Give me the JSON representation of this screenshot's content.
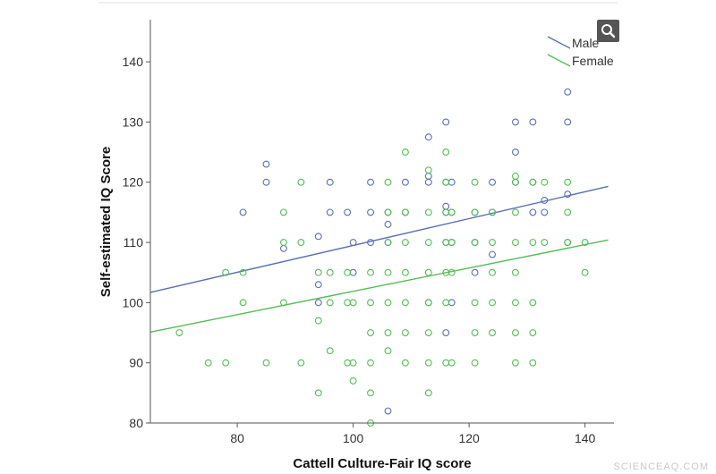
{
  "chart_data": {
    "type": "scatter",
    "xlabel": "Cattell Culture-Fair IQ score",
    "ylabel": "Self-estimated IQ Score",
    "xlim": [
      65,
      145
    ],
    "ylim": [
      80,
      147
    ],
    "xticks": [
      80,
      100,
      120,
      140
    ],
    "yticks": [
      80,
      90,
      100,
      110,
      120,
      130,
      140
    ],
    "grid": false,
    "legend_position": "top-right",
    "series": [
      {
        "name": "Male",
        "color": "#5b6fb3",
        "fit_line": {
          "x": [
            65,
            144
          ],
          "y": [
            101.7,
            119.3
          ]
        },
        "points": [
          [
            81,
            115
          ],
          [
            85,
            123
          ],
          [
            85,
            120
          ],
          [
            88,
            109
          ],
          [
            94,
            111
          ],
          [
            94,
            103
          ],
          [
            94,
            100
          ],
          [
            96,
            120
          ],
          [
            96,
            115
          ],
          [
            99,
            115
          ],
          [
            100,
            110
          ],
          [
            100,
            105
          ],
          [
            103,
            120
          ],
          [
            103,
            115
          ],
          [
            103,
            110
          ],
          [
            106,
            115
          ],
          [
            106,
            113
          ],
          [
            106,
            110
          ],
          [
            106,
            82
          ],
          [
            109,
            120
          ],
          [
            109,
            115
          ],
          [
            113,
            127.5
          ],
          [
            113,
            121
          ],
          [
            113,
            120
          ],
          [
            113,
            100
          ],
          [
            116,
            130
          ],
          [
            116,
            120
          ],
          [
            116,
            116
          ],
          [
            116,
            115
          ],
          [
            116,
            110
          ],
          [
            116,
            95
          ],
          [
            117,
            120
          ],
          [
            117,
            115
          ],
          [
            117,
            110
          ],
          [
            117,
            100
          ],
          [
            121,
            110
          ],
          [
            121,
            105
          ],
          [
            121,
            115
          ],
          [
            124,
            120
          ],
          [
            124,
            115
          ],
          [
            124,
            108
          ],
          [
            128,
            130
          ],
          [
            128,
            125
          ],
          [
            128,
            120
          ],
          [
            131,
            130
          ],
          [
            131,
            120
          ],
          [
            131,
            115
          ],
          [
            133,
            117
          ],
          [
            133,
            115
          ],
          [
            137,
            135
          ],
          [
            137,
            130
          ],
          [
            137,
            118
          ],
          [
            137,
            110
          ]
        ]
      },
      {
        "name": "Female",
        "color": "#55bb55",
        "fit_line": {
          "x": [
            65,
            144
          ],
          "y": [
            95.1,
            110.4
          ]
        },
        "points": [
          [
            70,
            95
          ],
          [
            75,
            90
          ],
          [
            78,
            105
          ],
          [
            78,
            90
          ],
          [
            81,
            105
          ],
          [
            81,
            100
          ],
          [
            85,
            90
          ],
          [
            88,
            115
          ],
          [
            88,
            110
          ],
          [
            88,
            100
          ],
          [
            91,
            120
          ],
          [
            91,
            110
          ],
          [
            91,
            90
          ],
          [
            94,
            105
          ],
          [
            94,
            97
          ],
          [
            94,
            85
          ],
          [
            96,
            105
          ],
          [
            96,
            100
          ],
          [
            96,
            92
          ],
          [
            99,
            105
          ],
          [
            99,
            100
          ],
          [
            99,
            90
          ],
          [
            100,
            100
          ],
          [
            100,
            90
          ],
          [
            100,
            87
          ],
          [
            103,
            105
          ],
          [
            103,
            100
          ],
          [
            103,
            95
          ],
          [
            103,
            90
          ],
          [
            103,
            85
          ],
          [
            103,
            80
          ],
          [
            106,
            120
          ],
          [
            106,
            115
          ],
          [
            106,
            110
          ],
          [
            106,
            105
          ],
          [
            106,
            100
          ],
          [
            106,
            95
          ],
          [
            106,
            92
          ],
          [
            109,
            125
          ],
          [
            109,
            115
          ],
          [
            109,
            110
          ],
          [
            109,
            105
          ],
          [
            109,
            100
          ],
          [
            109,
            95
          ],
          [
            109,
            90
          ],
          [
            113,
            122
          ],
          [
            113,
            115
          ],
          [
            113,
            110
          ],
          [
            113,
            105
          ],
          [
            113,
            100
          ],
          [
            113,
            95
          ],
          [
            113,
            90
          ],
          [
            113,
            85
          ],
          [
            116,
            125
          ],
          [
            116,
            120
          ],
          [
            116,
            115
          ],
          [
            116,
            110
          ],
          [
            116,
            105
          ],
          [
            116,
            100
          ],
          [
            116,
            90
          ],
          [
            117,
            115
          ],
          [
            117,
            110
          ],
          [
            117,
            105
          ],
          [
            117,
            90
          ],
          [
            121,
            120
          ],
          [
            121,
            115
          ],
          [
            121,
            110
          ],
          [
            121,
            100
          ],
          [
            121,
            95
          ],
          [
            121,
            90
          ],
          [
            124,
            115
          ],
          [
            124,
            110
          ],
          [
            124,
            105
          ],
          [
            124,
            100
          ],
          [
            124,
            95
          ],
          [
            128,
            121
          ],
          [
            128,
            120
          ],
          [
            128,
            115
          ],
          [
            128,
            110
          ],
          [
            128,
            105
          ],
          [
            128,
            100
          ],
          [
            128,
            95
          ],
          [
            128,
            90
          ],
          [
            131,
            120
          ],
          [
            131,
            110
          ],
          [
            131,
            100
          ],
          [
            131,
            95
          ],
          [
            131,
            90
          ],
          [
            133,
            120
          ],
          [
            133,
            110
          ],
          [
            137,
            120
          ],
          [
            137,
            115
          ],
          [
            137,
            110
          ],
          [
            140,
            110
          ],
          [
            140,
            105
          ]
        ]
      }
    ]
  },
  "toolbar": {
    "zoom_icon": "magnifier-icon"
  },
  "watermark": "SCIENCEAQ.COM"
}
